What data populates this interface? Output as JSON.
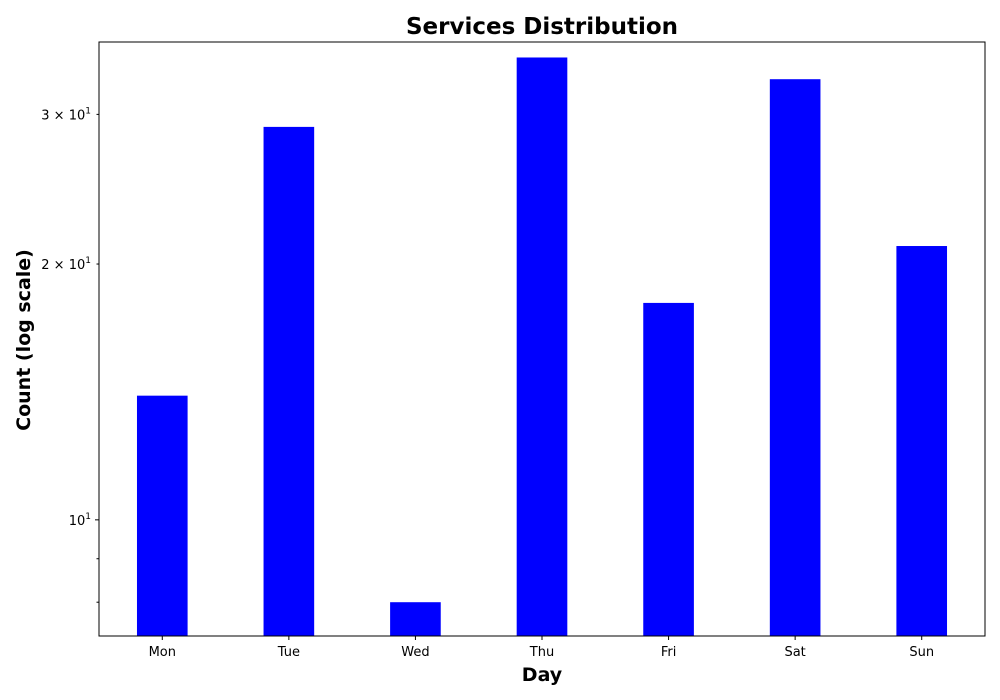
{
  "chart_data": {
    "type": "bar",
    "title": "Services Distribution",
    "xlabel": "Day",
    "ylabel": "Count (log scale)",
    "categories": [
      "Mon",
      "Tue",
      "Wed",
      "Thu",
      "Fri",
      "Sat",
      "Sun"
    ],
    "values": [
      14,
      29,
      8,
      35,
      18,
      33,
      21
    ],
    "yscale": "log",
    "ylim": [
      7.3,
      36.5
    ],
    "major_yticks": [
      {
        "value": 10,
        "base": "10",
        "exp": "1"
      }
    ],
    "minor_yticks": [
      {
        "value": 8,
        "label": ""
      },
      {
        "value": 9,
        "label": ""
      },
      {
        "value": 20,
        "base": "2 × 10",
        "exp": "1"
      },
      {
        "value": 30,
        "base": "3 × 10",
        "exp": "1"
      }
    ],
    "bar_color": "#0000ff",
    "grid": false,
    "legend": "none"
  }
}
